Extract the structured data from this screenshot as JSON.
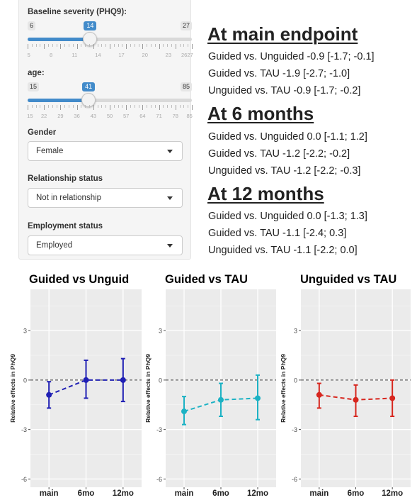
{
  "sidebar": {
    "severity": {
      "label": "Baseline severity (PHQ9):",
      "min": "6",
      "max": "27",
      "value": "14",
      "min_num": 6,
      "max_num": 27,
      "value_num": 14,
      "tick_labels": [
        "5",
        "8",
        "11",
        "14",
        "17",
        "20",
        "23",
        "2627"
      ]
    },
    "age": {
      "label": "age:",
      "min": "15",
      "max": "85",
      "value": "41",
      "min_num": 15,
      "max_num": 85,
      "value_num": 41,
      "tick_labels": [
        "15",
        "22",
        "29",
        "36",
        "43",
        "50",
        "57",
        "64",
        "71",
        "78",
        "85"
      ]
    },
    "gender": {
      "label": "Gender",
      "value": "Female"
    },
    "relationship": {
      "label": "Relationship status",
      "value": "Not in relationship"
    },
    "employment": {
      "label": "Employment status",
      "value": "Employed"
    },
    "accent_color": "#428bca"
  },
  "summary": {
    "sections": [
      {
        "title": "At main endpoint",
        "lines": [
          "Guided vs. Unguided -0.9 [-1.7; -0.1]",
          "Guided vs. TAU -1.9 [-2.7; -1.0]",
          "Unguided vs. TAU -0.9 [-1.7; -0.2]"
        ]
      },
      {
        "title": "At 6 months",
        "lines": [
          "Guided vs. Unguided 0.0 [-1.1; 1.2]",
          "Guided vs. TAU -1.2 [-2.2; -0.2]",
          "Unguided vs. TAU -1.2 [-2.2; -0.3]"
        ]
      },
      {
        "title": "At 12 months",
        "lines": [
          "Guided vs. Unguided 0.0 [-1.3; 1.3]",
          "Guided vs. TAU -1.1 [-2.4; 0.3]",
          "Unguided vs. TAU -1.1 [-2.2; 0.0]"
        ]
      }
    ]
  },
  "chart_data": [
    {
      "type": "line",
      "title": "Guided vs Unguid",
      "ylabel": "Relative effects in PhQ9",
      "categories": [
        "main",
        "6mo",
        "12mo"
      ],
      "ylim": [
        -6.5,
        5.5
      ],
      "yticks": [
        "3",
        "0",
        "-3",
        "-6"
      ],
      "color": "#1f1fb4",
      "series": [
        {
          "values": [
            -0.9,
            0.0,
            0.0
          ],
          "lower": [
            -1.7,
            -1.1,
            -1.3
          ],
          "upper": [
            -0.1,
            1.2,
            1.3
          ]
        }
      ]
    },
    {
      "type": "line",
      "title": "Guided vs TAU",
      "ylabel": "Relative effects in PhQ9",
      "categories": [
        "main",
        "6mo",
        "12mo"
      ],
      "ylim": [
        -6.5,
        5.5
      ],
      "yticks": [
        "3",
        "0",
        "-3",
        "-6"
      ],
      "color": "#1cb2c4",
      "series": [
        {
          "values": [
            -1.9,
            -1.2,
            -1.1
          ],
          "lower": [
            -2.7,
            -2.2,
            -2.4
          ],
          "upper": [
            -1.0,
            -0.2,
            0.3
          ]
        }
      ]
    },
    {
      "type": "line",
      "title": "Unguided vs TAU",
      "ylabel": "Relative effects in PhQ9",
      "categories": [
        "main",
        "6mo",
        "12mo"
      ],
      "ylim": [
        -6.5,
        5.5
      ],
      "yticks": [
        "3",
        "0",
        "-3",
        "-6"
      ],
      "color": "#d7261e",
      "series": [
        {
          "values": [
            -0.9,
            -1.2,
            -1.1
          ],
          "lower": [
            -1.7,
            -2.2,
            -2.2
          ],
          "upper": [
            -0.2,
            -0.3,
            0.0
          ]
        }
      ]
    }
  ]
}
